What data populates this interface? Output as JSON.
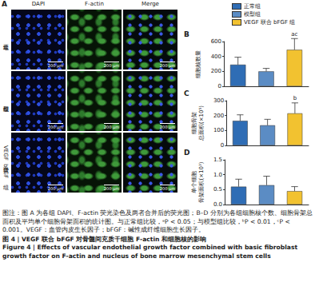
{
  "figure": {
    "panel_labels": [
      "A",
      "B",
      "C",
      "D"
    ],
    "image_panel": {
      "columns": [
        "DAPI",
        "F-actin",
        "Merge"
      ],
      "rows": [
        "正常组",
        "模型组",
        "VEGF 联合 bFGF 组"
      ],
      "scale_bar": "200 μm"
    },
    "groups": [
      {
        "name": "正常组",
        "color": "#2f6db5"
      },
      {
        "name": "模型组",
        "color": "#5b8cc4"
      },
      {
        "name": "VEGF 联合 bFGF 组",
        "color": "#f2c230"
      }
    ],
    "caption": {
      "note": "图注：图 A 为各组 DAPI、F-actin 荧光染色及两者合并后的荧光图；B–D 分别为各组细胞核个数、细胞骨架总面积及平均单个细胞骨架面积的统计图。与正常组比较，ᵃP < 0.05；与模型组比较，ᵇP < 0.01，ᶜP < 0.001。VEGF：血管内皮生长因子；bFGF：碱性成纤维细胞生长因子。",
      "title_cn": "图 4 | VEGF 联合 bFGF 对骨髓间充质干细胞 F-actin 和细胞核的影响",
      "title_en": "Figure 4 | Effects of vascular endothelial growth factor combined with basic fibroblast growth factor on F-actin and nucleus of bone marrow mesenchymal stem cells"
    }
  },
  "chart_data": [
    {
      "type": "bar",
      "y_label": "细胞核数量",
      "categories": [
        null,
        null,
        null
      ],
      "values": [
        290,
        200,
        490
      ],
      "errors": [
        100,
        40,
        150
      ],
      "colors": [
        "#2f6db5",
        "#5b8cc4",
        "#f2c230"
      ],
      "annotations": [
        null,
        null,
        "ac"
      ],
      "ylim": [
        0,
        600
      ],
      "yticks": [
        0,
        200,
        400,
        600
      ],
      "grid": false,
      "tick_labels": "y"
    },
    {
      "type": "bar",
      "y_label": "细胞骨架\n总面积(×10⁵)",
      "categories": [
        null,
        null,
        null
      ],
      "values": [
        165,
        135,
        215
      ],
      "errors": [
        40,
        40,
        70
      ],
      "colors": [
        "#2f6db5",
        "#5b8cc4",
        "#f2c230"
      ],
      "annotations": [
        null,
        null,
        "b"
      ],
      "ylim": [
        0,
        300
      ],
      "yticks": [
        0,
        100,
        200,
        300
      ],
      "grid": false,
      "tick_labels": "y"
    },
    {
      "type": "bar",
      "y_label": "单个细胞\n骨架面积(×10³)",
      "categories": [
        null,
        null,
        null
      ],
      "values": [
        0.6,
        0.65,
        0.45
      ],
      "errors": [
        0.25,
        0.3,
        0.15
      ],
      "colors": [
        "#2f6db5",
        "#5b8cc4",
        "#f2c230"
      ],
      "annotations": [
        null,
        null,
        null
      ],
      "ylim": [
        0,
        1.5
      ],
      "yticks": [
        {
          "value": 0,
          "label": "0.0"
        },
        0.5,
        {
          "value": 1,
          "label": "1.0"
        },
        1.5
      ],
      "grid": false,
      "tick_labels": "y"
    }
  ]
}
